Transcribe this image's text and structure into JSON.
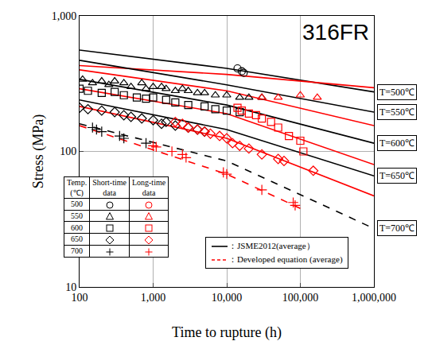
{
  "chart_data": {
    "type": "scatter",
    "title": "316FR",
    "x_label": "Time to rupture (h)",
    "y_label": "Stress (MPa)",
    "log": true,
    "grid": true,
    "xlim": [
      100,
      1000000
    ],
    "ylim": [
      10,
      1000
    ],
    "xticks": [
      100,
      {
        "value": 1000,
        "label": "1,000"
      },
      {
        "value": 10000,
        "label": "10,000"
      },
      {
        "value": 100000,
        "label": "100,000"
      },
      {
        "value": 1000000,
        "label": "1,000,000"
      }
    ],
    "yticks": [
      10,
      100,
      {
        "value": 1000,
        "label": "1,000"
      }
    ],
    "series": [
      {
        "type": "line",
        "color": "#000000",
        "line_style": "solid",
        "label": "T=500℃",
        "x": [
          100,
          10000,
          1000000
        ],
        "values": [
          560,
          410,
          275
        ]
      },
      {
        "type": "line",
        "color": "#ff0000",
        "line_style": "solid",
        "x": [
          100,
          10000,
          1000000
        ],
        "values": [
          430,
          370,
          295
        ]
      },
      {
        "type": "line",
        "color": "#000000",
        "line_style": "solid",
        "label": "T=550℃",
        "x": [
          100,
          10000,
          1000000
        ],
        "values": [
          470,
          310,
          195
        ]
      },
      {
        "type": "line",
        "color": "#ff0000",
        "line_style": "solid",
        "x": [
          100,
          10000,
          1000000
        ],
        "values": [
          400,
          280,
          155
        ]
      },
      {
        "type": "line",
        "color": "#000000",
        "line_style": "solid",
        "label": "T=600℃",
        "x": [
          100,
          10000,
          1000000
        ],
        "values": [
          340,
          220,
          115
        ]
      },
      {
        "type": "line",
        "color": "#ff0000",
        "line_style": "solid",
        "x": [
          100,
          10000,
          1000000
        ],
        "values": [
          290,
          190,
          80
        ]
      },
      {
        "type": "line",
        "color": "#000000",
        "line_style": "solid",
        "label": "T=650℃",
        "x": [
          100,
          10000,
          1000000
        ],
        "values": [
          240,
          145,
          66
        ]
      },
      {
        "type": "line",
        "color": "#ff0000",
        "line_style": "solid",
        "x": [
          100,
          10000,
          1000000
        ],
        "values": [
          215,
          125,
          47
        ]
      },
      {
        "type": "line",
        "color": "#000000",
        "line_style": "dash",
        "label": "T=700℃",
        "x": [
          100,
          10000,
          1000000
        ],
        "values": [
          160,
          85,
          27
        ]
      },
      {
        "type": "line",
        "color": "#ff0000",
        "line_style": "dash",
        "x": [
          100,
          10000,
          100000
        ],
        "values": [
          155,
          68,
          38
        ]
      },
      {
        "type": "scatter",
        "marker": "circle",
        "color": "#000000",
        "x": [
          14000,
          16000,
          17000
        ],
        "values": [
          410,
          390,
          380
        ]
      },
      {
        "type": "scatter",
        "marker": "triangle",
        "color": "#000000",
        "x": [
          110,
          150,
          200,
          250,
          300,
          400,
          500,
          700,
          800,
          1000,
          1300,
          1500,
          2000,
          2500,
          3000,
          4000,
          5000,
          7000,
          10000,
          15000,
          20000,
          30000
        ],
        "values": [
          340,
          320,
          330,
          310,
          330,
          320,
          300,
          320,
          290,
          300,
          300,
          290,
          280,
          290,
          280,
          270,
          270,
          260,
          260,
          250,
          250,
          250
        ]
      },
      {
        "type": "scatter",
        "marker": "triangle",
        "color": "#ff0000",
        "x": [
          30000,
          50000,
          100000,
          170000
        ],
        "values": [
          250,
          250,
          260,
          250
        ]
      },
      {
        "type": "scatter",
        "marker": "square",
        "color": "#000000",
        "x": [
          100,
          130,
          200,
          300,
          400,
          600,
          800,
          1000,
          1500,
          2000,
          3000,
          5000,
          7000,
          10000,
          15000
        ],
        "values": [
          290,
          280,
          270,
          275,
          260,
          250,
          245,
          250,
          240,
          230,
          220,
          215,
          205,
          200,
          195
        ]
      },
      {
        "type": "scatter",
        "marker": "square",
        "color": "#ff0000",
        "x": [
          14000,
          16000,
          20000,
          25000,
          30000,
          40000,
          50000,
          70000,
          100000,
          110000
        ],
        "values": [
          210,
          200,
          190,
          185,
          175,
          165,
          150,
          130,
          120,
          100
        ]
      },
      {
        "type": "scatter",
        "marker": "diamond",
        "color": "#000000",
        "x": [
          100,
          130,
          200,
          300,
          400,
          500,
          700,
          1000,
          1300,
          1500,
          2000,
          3000,
          4000,
          5000
        ],
        "values": [
          210,
          205,
          200,
          195,
          185,
          180,
          175,
          170,
          160,
          165,
          155,
          150,
          145,
          140
        ]
      },
      {
        "type": "scatter",
        "marker": "diamond",
        "color": "#ff0000",
        "x": [
          2000,
          2500,
          3000,
          4000,
          5000,
          6000,
          8000,
          10000,
          12000,
          15000,
          20000,
          30000,
          50000,
          60000,
          150000
        ],
        "values": [
          165,
          160,
          150,
          145,
          140,
          135,
          130,
          125,
          115,
          110,
          105,
          95,
          88,
          85,
          72
        ]
      },
      {
        "type": "scatter",
        "marker": "plus",
        "color": "#000000",
        "x": [
          150,
          170,
          200,
          350,
          400,
          800
        ],
        "values": [
          150,
          145,
          140,
          130,
          125,
          115
        ]
      },
      {
        "type": "scatter",
        "marker": "plus",
        "color": "#ff0000",
        "x": [
          1000,
          1100,
          1800,
          2500,
          2800,
          9000,
          10000,
          30000,
          80000,
          85000
        ],
        "values": [
          110,
          108,
          100,
          95,
          90,
          70,
          68,
          52,
          42,
          40
        ]
      }
    ],
    "marker_table": {
      "header": [
        "Temp. (℃)",
        "Short-time data",
        "Long-time data"
      ],
      "short_color": "#000000",
      "long_color": "#ff0000",
      "rows": [
        {
          "temp": "500",
          "marker": "circle"
        },
        {
          "temp": "550",
          "marker": "triangle"
        },
        {
          "temp": "600",
          "marker": "square"
        },
        {
          "temp": "650",
          "marker": "diamond"
        },
        {
          "temp": "700",
          "marker": "plus"
        }
      ]
    },
    "line_legend": [
      {
        "label": "：JSME2012(average）",
        "color": "#000000",
        "line_style": "solid"
      },
      {
        "label": "：Developed equation (average)",
        "color": "#ff0000",
        "line_style": "dash"
      }
    ]
  }
}
